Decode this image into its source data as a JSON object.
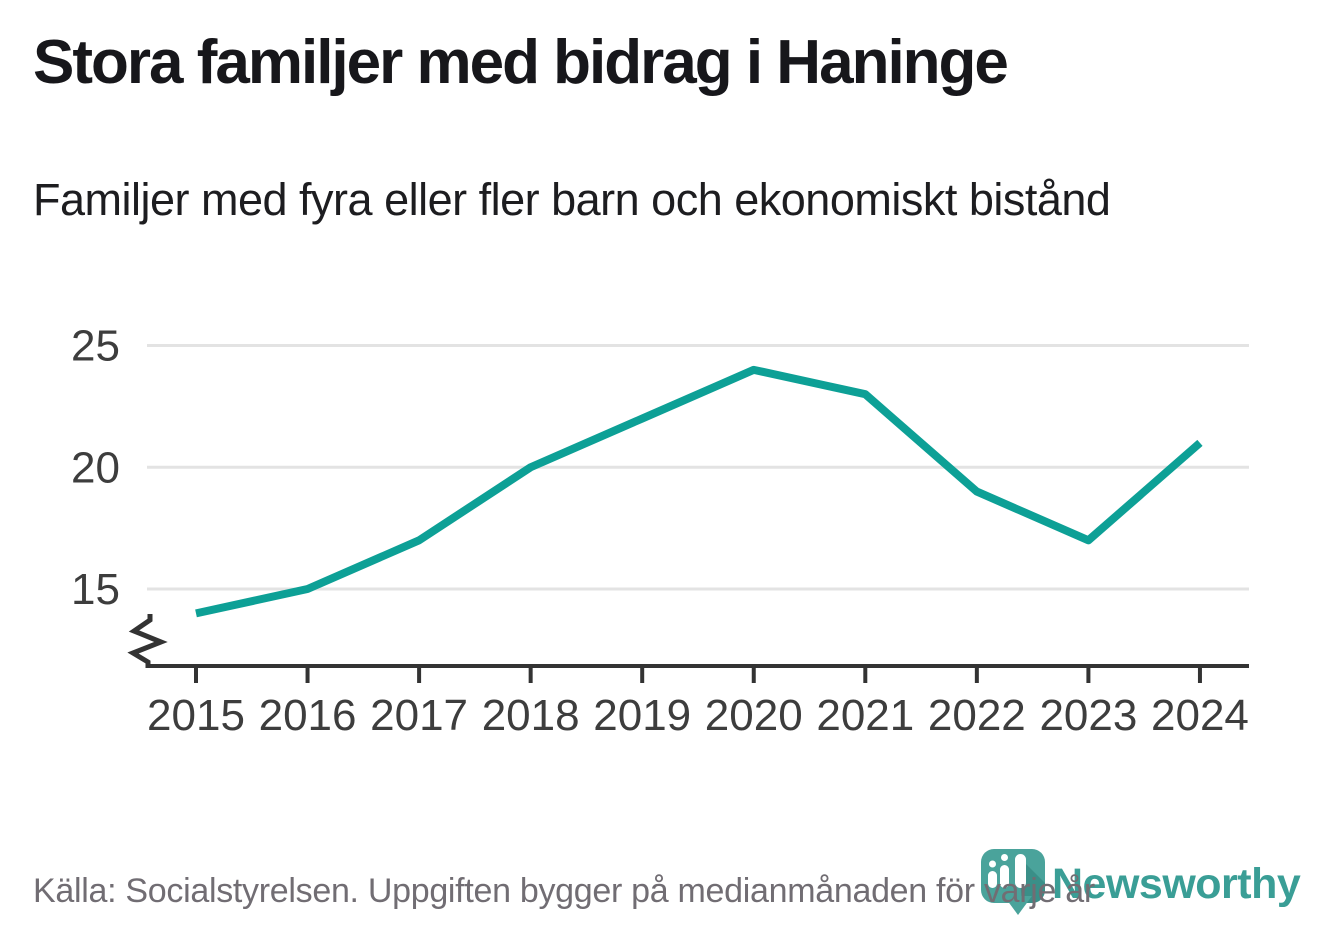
{
  "header": {
    "title": "Stora familjer med bidrag i Haninge",
    "subtitle": "Familjer med fyra eller fler barn och ekonomiskt bistånd"
  },
  "chart_data": {
    "type": "line",
    "title": "Stora familjer med bidrag i Haninge",
    "subtitle": "Familjer med fyra eller fler barn och ekonomiskt bistånd",
    "x": [
      2015,
      2016,
      2017,
      2018,
      2019,
      2020,
      2021,
      2022,
      2023,
      2024
    ],
    "series": [
      {
        "name": "Familjer med fyra eller fler barn och ekonomiskt bistånd",
        "values": [
          14,
          15,
          17,
          20,
          22,
          24,
          23,
          19,
          17,
          21
        ]
      }
    ],
    "xlabel": "",
    "ylabel": "",
    "yticks": [
      15,
      20,
      25
    ],
    "ylim": [
      12.5,
      26
    ],
    "grid": true,
    "axis_break": true,
    "legend": "none",
    "line_color": "#0da096"
  },
  "footer": {
    "source": "Källa: Socialstyrelsen. Uppgiften bygger på medianmånaden för varje år",
    "brand": "Newsworthy",
    "brand_color": "#3a9e96",
    "icon_color": "#4aa39b"
  }
}
